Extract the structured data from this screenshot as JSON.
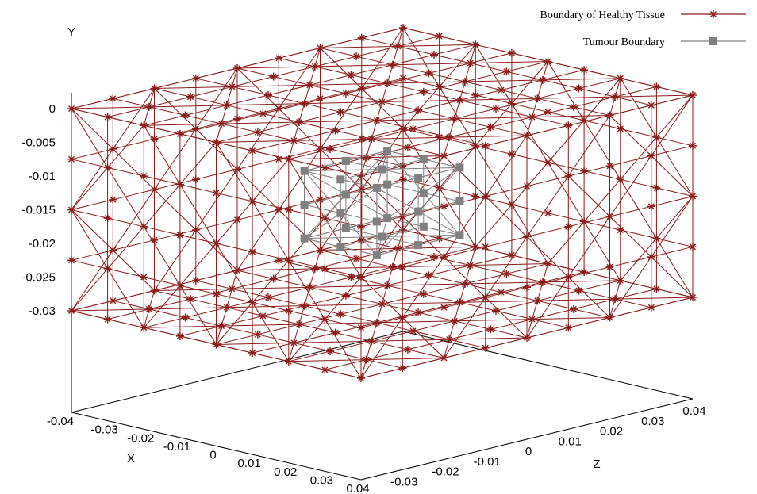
{
  "chart_data": {
    "type": "surface-3d-mesh",
    "axes": {
      "x": {
        "label": "X",
        "range": [
          -0.04,
          0.04
        ],
        "ticks": [
          "-0.04",
          "-0.03",
          "-0.02",
          "-0.01",
          "0",
          "0.01",
          "0.02",
          "0.03",
          "0.04"
        ]
      },
      "y": {
        "label": "Y",
        "range": [
          -0.035,
          0.0
        ],
        "ticks": [
          "0",
          "-0.005",
          "-0.01",
          "-0.015",
          "-0.02",
          "-0.025",
          "-0.03"
        ]
      },
      "z": {
        "label": "Z",
        "range": [
          -0.04,
          0.04
        ],
        "ticks": [
          "-0.03",
          "-0.02",
          "-0.01",
          "0",
          "0.01",
          "0.02",
          "0.03",
          "0.04"
        ]
      }
    },
    "legend": {
      "position": "top-right"
    },
    "series": [
      {
        "name": "Boundary of Healthy Tissue",
        "color": "#8b1a1a",
        "marker": "star",
        "shape": "box",
        "x_extent": [
          -0.04,
          0.04
        ],
        "y_extent": [
          -0.03,
          0.0
        ],
        "z_extent": [
          -0.04,
          0.04
        ],
        "grid_divisions": {
          "x": 8,
          "y": 4,
          "z": 8
        }
      },
      {
        "name": "Tumour Boundary",
        "color": "#808080",
        "marker": "square",
        "shape": "box",
        "x_extent": [
          -0.01,
          0.01
        ],
        "y_extent": [
          -0.02,
          -0.01
        ],
        "z_extent": [
          -0.01,
          0.01
        ],
        "grid_divisions": {
          "x": 2,
          "y": 2,
          "z": 2
        }
      }
    ]
  }
}
